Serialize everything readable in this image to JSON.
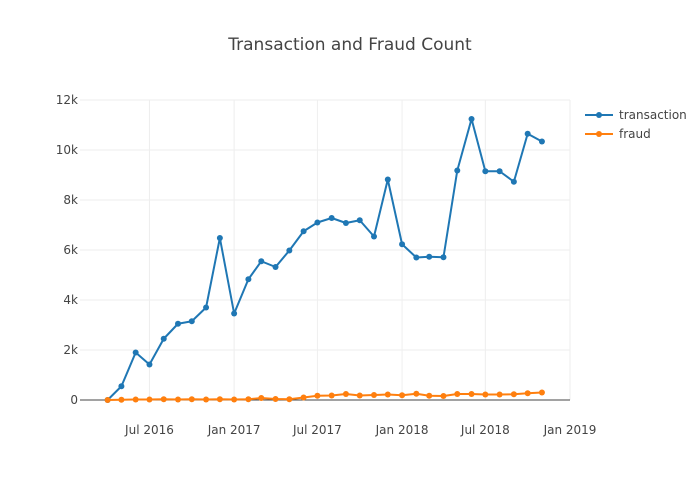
{
  "chart_data": {
    "type": "line",
    "title": "Transaction and Fraud Count",
    "xlabel": "",
    "ylabel": "",
    "x_ticks": [
      {
        "label": "Jul 2016",
        "date": "2016-07-01"
      },
      {
        "label": "Jan 2017",
        "date": "2017-01-01"
      },
      {
        "label": "Jul 2017",
        "date": "2017-07-01"
      },
      {
        "label": "Jan 2018",
        "date": "2018-01-01"
      },
      {
        "label": "Jul 2018",
        "date": "2018-07-01"
      },
      {
        "label": "Jan 2019",
        "date": "2019-01-01"
      }
    ],
    "y_ticks": [
      {
        "label": "0",
        "value": 0
      },
      {
        "label": "2k",
        "value": 2000
      },
      {
        "label": "4k",
        "value": 4000
      },
      {
        "label": "6k",
        "value": 6000
      },
      {
        "label": "8k",
        "value": 8000
      },
      {
        "label": "10k",
        "value": 10000
      },
      {
        "label": "12k",
        "value": 12000
      }
    ],
    "xlim": [
      "2016-02-01",
      "2019-01-01"
    ],
    "ylim": [
      -1200,
      12000
    ],
    "grid": true,
    "legend_position": "top-right",
    "x": [
      "2016-04-01",
      "2016-05-01",
      "2016-06-01",
      "2016-07-01",
      "2016-08-01",
      "2016-09-01",
      "2016-10-01",
      "2016-11-01",
      "2016-12-01",
      "2017-01-01",
      "2017-02-01",
      "2017-03-01",
      "2017-04-01",
      "2017-05-01",
      "2017-06-01",
      "2017-07-01",
      "2017-08-01",
      "2017-09-01",
      "2017-10-01",
      "2017-11-01",
      "2017-12-01",
      "2018-01-01",
      "2018-02-01",
      "2018-03-01",
      "2018-04-01",
      "2018-05-01",
      "2018-06-01",
      "2018-07-01",
      "2018-08-01",
      "2018-09-01",
      "2018-10-01",
      "2018-11-01"
    ],
    "series": [
      {
        "name": "transaction",
        "color": "#1f77b4",
        "values": [
          0,
          550,
          1900,
          1420,
          2450,
          3050,
          3150,
          3700,
          6480,
          3460,
          4830,
          5550,
          5320,
          5980,
          6750,
          7100,
          7280,
          7080,
          7190,
          6540,
          8820,
          6230,
          5700,
          5730,
          5710,
          9180,
          11240,
          9150,
          9150,
          8730,
          10650,
          10340
        ]
      },
      {
        "name": "fraud",
        "color": "#ff7f0e",
        "values": [
          0,
          10,
          20,
          20,
          30,
          20,
          30,
          20,
          30,
          20,
          30,
          80,
          40,
          30,
          100,
          170,
          180,
          240,
          180,
          200,
          220,
          190,
          250,
          170,
          160,
          240,
          240,
          220,
          220,
          230,
          270,
          300
        ]
      }
    ]
  }
}
